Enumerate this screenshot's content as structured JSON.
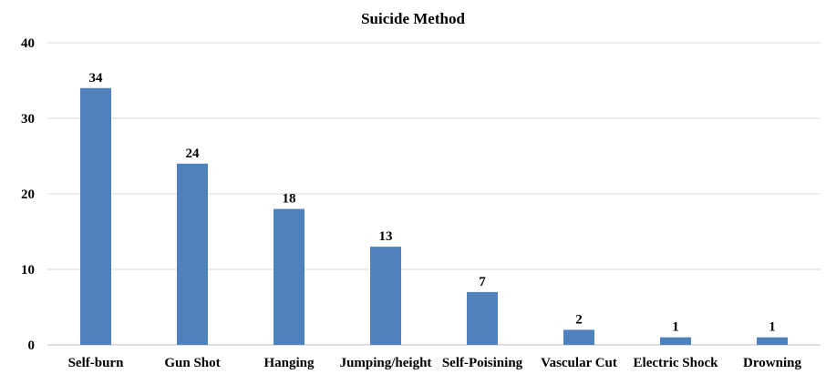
{
  "chart_data": {
    "type": "bar",
    "title": "Suicide Method",
    "xlabel": "",
    "ylabel": "",
    "categories": [
      "Self-burn",
      "Gun Shot",
      "Hanging",
      "Jumping/height",
      "Self-Poisining",
      "Vascular Cut",
      "Electric Shock",
      "Drowning"
    ],
    "values": [
      34,
      24,
      18,
      13,
      7,
      2,
      1,
      1
    ],
    "ylim": [
      0,
      40
    ],
    "yticks": [
      0,
      10,
      20,
      30,
      40
    ],
    "grid": true,
    "legend": "none",
    "bar_color": "#4f81bd"
  }
}
